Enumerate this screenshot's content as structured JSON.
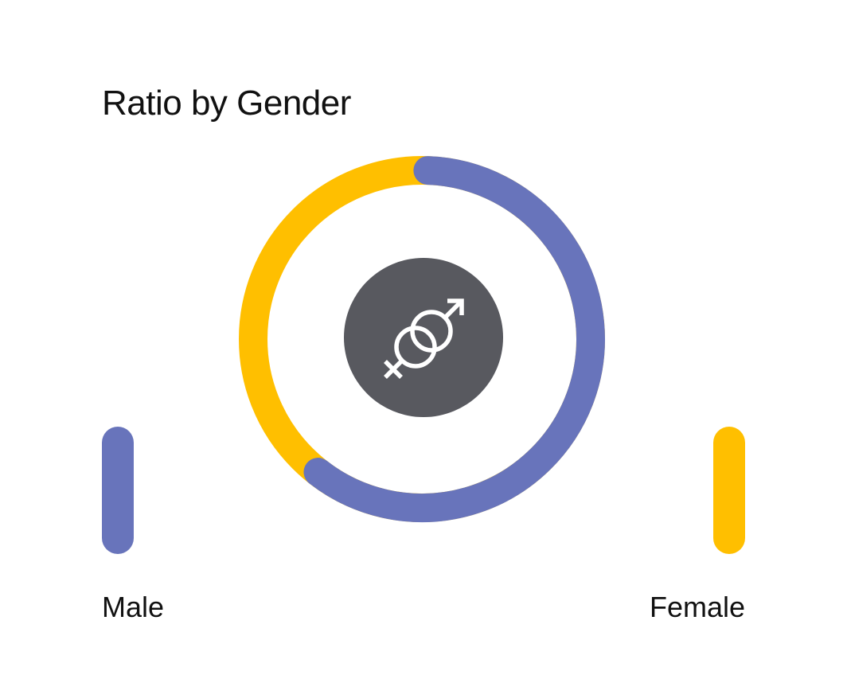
{
  "chart_data": {
    "type": "pie",
    "style": "donut",
    "title": "Ratio by Gender",
    "categories": [
      "Male",
      "Female"
    ],
    "values": [
      60,
      40
    ],
    "colors": {
      "Male": "#6874bb",
      "Female": "#ffbf00"
    },
    "center_icon": "male-female-symbol-icon",
    "center_color": "#58595f",
    "legend_placement": "bottom-corners"
  },
  "legend": {
    "male_label": "Male",
    "female_label": "Female"
  }
}
